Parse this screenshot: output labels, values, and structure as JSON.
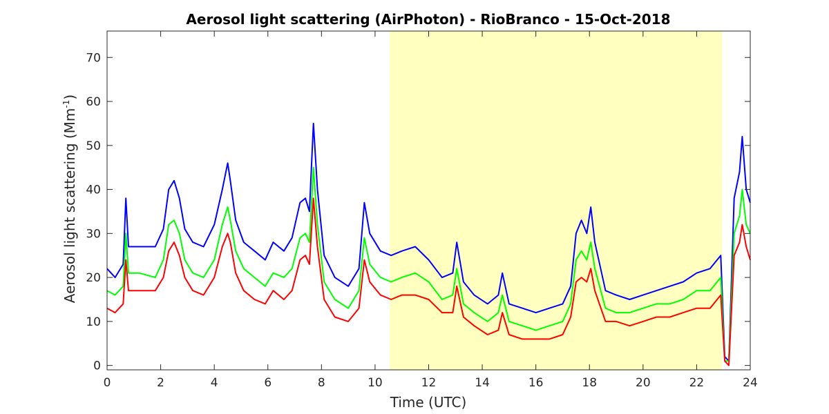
{
  "chart_data": {
    "type": "line",
    "title": "Aerosol light scattering (AirPhoton) - RioBranco - 15-Oct-2018",
    "xlabel": "Time (UTC)",
    "ylabel_main": "Aerosol light scattering (Mm",
    "ylabel_sup": "-1",
    "ylabel_close": ")",
    "xlim": [
      0,
      24
    ],
    "ylim": [
      -1,
      76
    ],
    "xticks": [
      0,
      2,
      4,
      6,
      8,
      10,
      12,
      14,
      16,
      18,
      20,
      22,
      24
    ],
    "yticks": [
      0,
      10,
      20,
      30,
      40,
      50,
      60,
      70
    ],
    "grid": false,
    "highlight_span": {
      "x0": 10.55,
      "x1": 22.95,
      "color": "#ffffbf"
    },
    "series": [
      {
        "color": "#0000ff",
        "x": [
          0,
          0.3,
          0.6,
          0.7,
          0.8,
          1.2,
          1.8,
          2.1,
          2.3,
          2.5,
          2.7,
          2.9,
          3.2,
          3.6,
          4.0,
          4.3,
          4.5,
          4.6,
          4.8,
          5.1,
          5.5,
          5.9,
          6.2,
          6.6,
          6.9,
          7.2,
          7.4,
          7.55,
          7.7,
          7.85,
          8.1,
          8.5,
          9.0,
          9.4,
          9.6,
          9.8,
          10.2,
          10.6,
          11.0,
          11.5,
          12.0,
          12.5,
          12.9,
          13.05,
          13.3,
          13.7,
          14.2,
          14.6,
          14.75,
          15.0,
          15.5,
          16.0,
          16.5,
          17.0,
          17.3,
          17.5,
          17.7,
          17.9,
          18.05,
          18.2,
          18.6,
          19.0,
          19.5,
          20.0,
          20.5,
          21.0,
          21.5,
          22.0,
          22.5,
          22.9,
          23.05,
          23.2,
          23.4,
          23.6,
          23.7,
          23.85,
          24
        ],
        "y": [
          22,
          20,
          23,
          38,
          27,
          27,
          27,
          31,
          40,
          42,
          38,
          31,
          28,
          27,
          32,
          40,
          46,
          42,
          33,
          28,
          26,
          24,
          28,
          26,
          29,
          37,
          38,
          35,
          55,
          40,
          25,
          20,
          18,
          22,
          37,
          30,
          26,
          25,
          26,
          27,
          24,
          20,
          21,
          28,
          19,
          16,
          14,
          16,
          21,
          14,
          13,
          12,
          13,
          14,
          18,
          30,
          33,
          30,
          36,
          28,
          17,
          16,
          15,
          16,
          17,
          18,
          19,
          21,
          22,
          25,
          2,
          1,
          38,
          44,
          52,
          40,
          37
        ]
      },
      {
        "color": "#00ff00",
        "x": [
          0,
          0.3,
          0.6,
          0.7,
          0.8,
          1.2,
          1.8,
          2.1,
          2.3,
          2.5,
          2.7,
          2.9,
          3.2,
          3.6,
          4.0,
          4.3,
          4.5,
          4.6,
          4.8,
          5.1,
          5.5,
          5.9,
          6.2,
          6.6,
          6.9,
          7.2,
          7.4,
          7.55,
          7.7,
          7.85,
          8.1,
          8.5,
          9.0,
          9.4,
          9.6,
          9.8,
          10.2,
          10.6,
          11.0,
          11.5,
          12.0,
          12.5,
          12.9,
          13.05,
          13.3,
          13.7,
          14.2,
          14.6,
          14.75,
          15.0,
          15.5,
          16.0,
          16.5,
          17.0,
          17.3,
          17.5,
          17.7,
          17.9,
          18.05,
          18.2,
          18.6,
          19.0,
          19.5,
          20.0,
          20.5,
          21.0,
          21.5,
          22.0,
          22.5,
          22.9,
          23.05,
          23.2,
          23.4,
          23.6,
          23.7,
          23.85,
          24
        ],
        "y": [
          17,
          16,
          18,
          30,
          21,
          21,
          20,
          24,
          32,
          33,
          30,
          24,
          21,
          20,
          24,
          32,
          36,
          33,
          26,
          22,
          20,
          18,
          21,
          20,
          22,
          29,
          30,
          28,
          45,
          32,
          19,
          15,
          13,
          17,
          29,
          23,
          20,
          19,
          20,
          21,
          19,
          15,
          16,
          22,
          14,
          12,
          10,
          12,
          16,
          10,
          9,
          8,
          9,
          10,
          14,
          24,
          26,
          24,
          28,
          22,
          13,
          12,
          12,
          13,
          14,
          14,
          15,
          17,
          17,
          20,
          1,
          1,
          30,
          34,
          40,
          32,
          30
        ]
      },
      {
        "color": "#ff0000",
        "x": [
          0,
          0.3,
          0.6,
          0.7,
          0.8,
          1.2,
          1.8,
          2.1,
          2.3,
          2.5,
          2.7,
          2.9,
          3.2,
          3.6,
          4.0,
          4.3,
          4.5,
          4.6,
          4.8,
          5.1,
          5.5,
          5.9,
          6.2,
          6.6,
          6.9,
          7.2,
          7.4,
          7.55,
          7.7,
          7.85,
          8.1,
          8.5,
          9.0,
          9.4,
          9.6,
          9.8,
          10.2,
          10.6,
          11.0,
          11.5,
          12.0,
          12.5,
          12.9,
          13.05,
          13.3,
          13.7,
          14.2,
          14.6,
          14.75,
          15.0,
          15.5,
          16.0,
          16.5,
          17.0,
          17.3,
          17.5,
          17.7,
          17.9,
          18.05,
          18.2,
          18.6,
          19.0,
          19.5,
          20.0,
          20.5,
          21.0,
          21.5,
          22.0,
          22.5,
          22.9,
          23.05,
          23.2,
          23.4,
          23.6,
          23.7,
          23.85,
          24
        ],
        "y": [
          13,
          12,
          14,
          24,
          17,
          17,
          17,
          20,
          26,
          28,
          25,
          20,
          17,
          16,
          20,
          27,
          30,
          28,
          21,
          17,
          15,
          14,
          17,
          15,
          17,
          24,
          25,
          23,
          38,
          27,
          15,
          11,
          10,
          13,
          24,
          19,
          16,
          15,
          16,
          16,
          15,
          12,
          12,
          18,
          11,
          9,
          7,
          8,
          12,
          7,
          6,
          6,
          6,
          7,
          11,
          19,
          20,
          19,
          22,
          17,
          10,
          10,
          9,
          10,
          11,
          11,
          12,
          13,
          13,
          16,
          1,
          0,
          25,
          28,
          32,
          27,
          24
        ]
      }
    ]
  }
}
